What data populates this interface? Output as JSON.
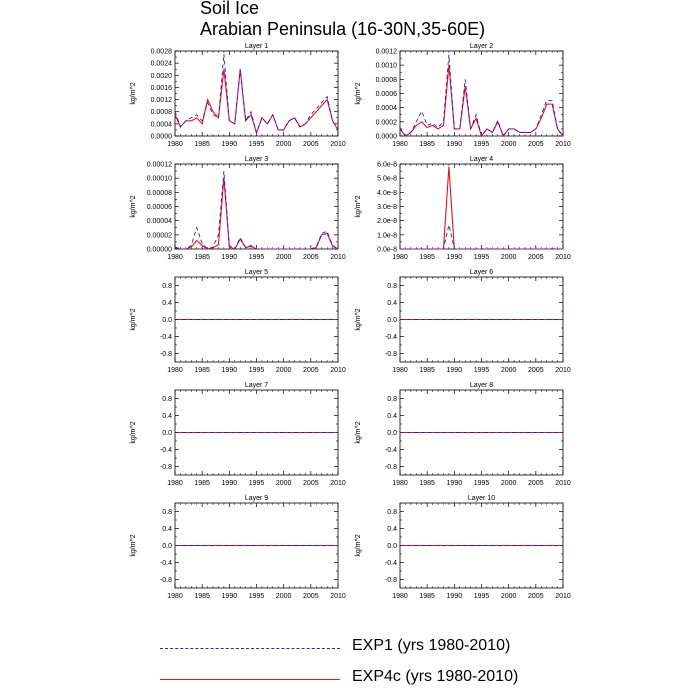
{
  "title": "Soil Ice",
  "subtitle": "Arabian Peninsula (16-30N,35-60E)",
  "colors": {
    "exp1": "#2222dd",
    "exp4c": "#ee1111",
    "axis": "#000000"
  },
  "legend": [
    {
      "label": "EXP1 (yrs 1980-2010)",
      "style": "dashed",
      "color": "#2222dd"
    },
    {
      "label": "EXP4c (yrs 1980-2010)",
      "style": "solid",
      "color": "#ee1111"
    }
  ],
  "chart_data": [
    {
      "type": "line",
      "title": "Layer 1",
      "ylabel": "kg/m^2",
      "xlabel": "",
      "xlim": [
        1980,
        2010
      ],
      "ylim": [
        0,
        0.0028
      ],
      "yticks": [
        0,
        0.0004,
        0.0008,
        0.0012,
        0.0016,
        0.002,
        0.0024,
        0.0028
      ],
      "ytick_labels": [
        "0.0000",
        "0.0004",
        "0.0008",
        "0.0012",
        "0.0016",
        "0.0020",
        "0.0024",
        "0.0028"
      ],
      "xticks": [
        1980,
        1985,
        1990,
        1995,
        2000,
        2005,
        2010
      ],
      "xtick_labels": [
        "1980",
        "1985",
        "1990",
        "1995",
        "2000",
        "2005",
        "2010"
      ],
      "x": [
        1980,
        1981,
        1982,
        1983,
        1984,
        1985,
        1986,
        1987,
        1988,
        1989,
        1990,
        1991,
        1992,
        1993,
        1994,
        1995,
        1996,
        1997,
        1998,
        1999,
        2000,
        2001,
        2002,
        2003,
        2004,
        2005,
        2006,
        2007,
        2008,
        2009,
        2010
      ],
      "series": [
        {
          "name": "EXP1 (yrs 1980-2010)",
          "style": "dashed",
          "values": [
            0.0008,
            0.0003,
            0.0005,
            0.0006,
            0.0007,
            0.0005,
            0.0011,
            0.0007,
            0.0006,
            0.0027,
            0.0005,
            0.0004,
            0.0022,
            0.0005,
            0.0008,
            0.0001,
            0.0006,
            0.0004,
            0.0007,
            0.0002,
            0.0002,
            0.0005,
            0.0006,
            0.0003,
            0.0004,
            0.0007,
            0.0009,
            0.0011,
            0.0013,
            0.0005,
            0.0002
          ]
        },
        {
          "name": "EXP4c (yrs 1980-2010)",
          "style": "solid",
          "values": [
            0.0007,
            0.0003,
            0.0005,
            0.0005,
            0.0006,
            0.0004,
            0.0012,
            0.0008,
            0.0006,
            0.0022,
            0.0005,
            0.0004,
            0.0022,
            0.0005,
            0.0007,
            0.0001,
            0.0006,
            0.0004,
            0.0007,
            0.0002,
            0.0002,
            0.0005,
            0.0006,
            0.0003,
            0.0004,
            0.0006,
            0.0008,
            0.001,
            0.0012,
            0.0005,
            0.0002
          ]
        }
      ]
    },
    {
      "type": "line",
      "title": "Layer 2",
      "ylabel": "kg/m^2",
      "xlabel": "",
      "xlim": [
        1980,
        2010
      ],
      "ylim": [
        0,
        0.0012
      ],
      "yticks": [
        0,
        0.0002,
        0.0004,
        0.0006,
        0.0008,
        0.001,
        0.0012
      ],
      "ytick_labels": [
        "0.0000",
        "0.0002",
        "0.0004",
        "0.0006",
        "0.0008",
        "0.0010",
        "0.0012"
      ],
      "xticks": [
        1980,
        1985,
        1990,
        1995,
        2000,
        2005,
        2010
      ],
      "xtick_labels": [
        "1980",
        "1985",
        "1990",
        "1995",
        "2000",
        "2005",
        "2010"
      ],
      "x": [
        1980,
        1981,
        1982,
        1983,
        1984,
        1985,
        1986,
        1987,
        1988,
        1989,
        1990,
        1991,
        1992,
        1993,
        1994,
        1995,
        1996,
        1997,
        1998,
        1999,
        2000,
        2001,
        2002,
        2003,
        2004,
        2005,
        2006,
        2007,
        2008,
        2009,
        2010
      ],
      "series": [
        {
          "name": "EXP1 (yrs 1980-2010)",
          "style": "dashed",
          "values": [
            0.00012,
            0.0,
            5e-05,
            0.0002,
            0.00035,
            0.00015,
            0.00018,
            0.00012,
            0.0002,
            0.00115,
            0.0001,
            0.0001,
            0.0008,
            0.0001,
            0.0003,
            0.0,
            0.0001,
            5e-05,
            0.00022,
            0.0,
            0.0001,
            0.0001,
            5e-05,
            5e-05,
            5e-05,
            0.0001,
            0.0003,
            0.0005,
            0.0005,
            0.0001,
            0.0
          ]
        },
        {
          "name": "EXP4c (yrs 1980-2010)",
          "style": "solid",
          "values": [
            0.0001,
            0.0,
            5e-05,
            0.00015,
            0.0002,
            0.00012,
            0.00015,
            0.0001,
            0.00015,
            0.001,
            0.0001,
            0.0001,
            0.0007,
            0.0001,
            0.00025,
            0.0,
            0.0001,
            5e-05,
            0.0002,
            0.0,
            0.0001,
            0.0001,
            5e-05,
            5e-05,
            5e-05,
            0.0001,
            0.00025,
            0.00045,
            0.00045,
            0.0001,
            0.0
          ]
        }
      ]
    },
    {
      "type": "line",
      "title": "Layer 3",
      "ylabel": "kg/m^2",
      "xlabel": "",
      "xlim": [
        1980,
        2010
      ],
      "ylim": [
        0,
        0.00012
      ],
      "yticks": [
        0,
        2e-05,
        4e-05,
        6e-05,
        8e-05,
        0.0001,
        0.00012
      ],
      "ytick_labels": [
        "0.00000",
        "0.00002",
        "0.00004",
        "0.00006",
        "0.00008",
        "0.00010",
        "0.00012"
      ],
      "xticks": [
        1980,
        1985,
        1990,
        1995,
        2000,
        2005,
        2010
      ],
      "xtick_labels": [
        "1980",
        "1985",
        "1990",
        "1995",
        "2000",
        "2005",
        "2010"
      ],
      "x": [
        1980,
        1981,
        1982,
        1983,
        1984,
        1985,
        1986,
        1987,
        1988,
        1989,
        1990,
        1991,
        1992,
        1993,
        1994,
        1995,
        1996,
        1997,
        1998,
        1999,
        2000,
        2001,
        2002,
        2003,
        2004,
        2005,
        2006,
        2007,
        2008,
        2009,
        2010
      ],
      "series": [
        {
          "name": "EXP1 (yrs 1980-2010)",
          "style": "dashed",
          "values": [
            3e-06,
            0,
            0,
            5e-06,
            3e-05,
            8e-06,
            0,
            3e-06,
            2e-05,
            0.00011,
            5e-06,
            0,
            1.6e-05,
            2e-06,
            5e-06,
            0,
            0,
            0,
            0,
            0,
            0,
            0,
            0,
            0,
            0,
            0,
            3e-06,
            2.2e-05,
            2.5e-05,
            5e-06,
            0
          ]
        },
        {
          "name": "EXP4c (yrs 1980-2010)",
          "style": "solid",
          "values": [
            2e-06,
            0,
            0,
            3e-06,
            1.2e-05,
            5e-06,
            0,
            2e-06,
            6e-06,
            0.0001,
            3e-06,
            0,
            1.4e-05,
            2e-06,
            4e-06,
            0,
            0,
            0,
            0,
            0,
            0,
            0,
            0,
            0,
            0,
            0,
            2e-06,
            2e-05,
            2.2e-05,
            4e-06,
            0
          ]
        }
      ]
    },
    {
      "type": "line",
      "title": "Layer 4",
      "ylabel": "kg/m^2",
      "xlabel": "",
      "xlim": [
        1980,
        2010
      ],
      "ylim": [
        0,
        6e-08
      ],
      "yticks": [
        0,
        1e-08,
        2e-08,
        3e-08,
        4e-08,
        5e-08,
        6e-08
      ],
      "ytick_labels": [
        "0.0e-8",
        "1.0e-8",
        "2.0e-8",
        "3.0e-8",
        "4.0e-8",
        "5.0e-8",
        "6.0e-8"
      ],
      "xticks": [
        1980,
        1985,
        1990,
        1995,
        2000,
        2005,
        2010
      ],
      "xtick_labels": [
        "1980",
        "1985",
        "1990",
        "1995",
        "2000",
        "2005",
        "2010"
      ],
      "x": [
        1980,
        1981,
        1982,
        1983,
        1984,
        1985,
        1986,
        1987,
        1988,
        1989,
        1990,
        1991,
        1992,
        1993,
        1994,
        1995,
        1996,
        1997,
        1998,
        1999,
        2000,
        2001,
        2002,
        2003,
        2004,
        2005,
        2006,
        2007,
        2008,
        2009,
        2010
      ],
      "series": [
        {
          "name": "EXP1 (yrs 1980-2010)",
          "style": "dashed",
          "values": [
            0,
            0,
            0,
            0,
            0,
            0,
            0,
            0,
            0,
            1.7e-08,
            0,
            0,
            0,
            0,
            0,
            0,
            0,
            0,
            0,
            0,
            0,
            0,
            0,
            0,
            0,
            0,
            0,
            0,
            2e-10,
            0,
            0
          ]
        },
        {
          "name": "EXP4c (yrs 1980-2010)",
          "style": "solid",
          "values": [
            0,
            0,
            0,
            0,
            0,
            0,
            0,
            0,
            0,
            5.8e-08,
            0,
            0,
            0,
            0,
            0,
            0,
            0,
            0,
            0,
            0,
            0,
            0,
            0,
            0,
            0,
            0,
            0,
            0,
            0,
            0,
            0
          ]
        }
      ]
    },
    {
      "type": "line",
      "title": "Layer 5",
      "ylabel": "kg/m^2",
      "xlabel": "",
      "xlim": [
        1980,
        2010
      ],
      "ylim": [
        -1,
        1
      ],
      "yticks": [
        -0.8,
        -0.4,
        0,
        0.4,
        0.8
      ],
      "ytick_labels": [
        "-0.8",
        "-0.4",
        "0.0",
        "0.4",
        "0.8"
      ],
      "xticks": [
        1980,
        1985,
        1990,
        1995,
        2000,
        2005,
        2010
      ],
      "xtick_labels": [
        "1980",
        "1985",
        "1990",
        "1995",
        "2000",
        "2005",
        "2010"
      ],
      "x": [
        1980,
        2010
      ],
      "series": [
        {
          "name": "EXP1 (yrs 1980-2010)",
          "style": "dashed",
          "values": [
            0,
            0
          ]
        },
        {
          "name": "EXP4c (yrs 1980-2010)",
          "style": "solid",
          "values": [
            0,
            0
          ]
        }
      ]
    },
    {
      "type": "line",
      "title": "Layer 6",
      "ylabel": "kg/m^2",
      "xlabel": "",
      "xlim": [
        1980,
        2010
      ],
      "ylim": [
        -1,
        1
      ],
      "yticks": [
        -0.8,
        -0.4,
        0,
        0.4,
        0.8
      ],
      "ytick_labels": [
        "-0.8",
        "-0.4",
        "0.0",
        "0.4",
        "0.8"
      ],
      "xticks": [
        1980,
        1985,
        1990,
        1995,
        2000,
        2005,
        2010
      ],
      "xtick_labels": [
        "1980",
        "1985",
        "1990",
        "1995",
        "2000",
        "2005",
        "2010"
      ],
      "x": [
        1980,
        2010
      ],
      "series": [
        {
          "name": "EXP1 (yrs 1980-2010)",
          "style": "dashed",
          "values": [
            0,
            0
          ]
        },
        {
          "name": "EXP4c (yrs 1980-2010)",
          "style": "solid",
          "values": [
            0,
            0
          ]
        }
      ]
    },
    {
      "type": "line",
      "title": "Layer 7",
      "ylabel": "kg/m^2",
      "xlabel": "",
      "xlim": [
        1980,
        2010
      ],
      "ylim": [
        -1,
        1
      ],
      "yticks": [
        -0.8,
        -0.4,
        0,
        0.4,
        0.8
      ],
      "ytick_labels": [
        "-0.8",
        "-0.4",
        "0.0",
        "0.4",
        "0.8"
      ],
      "xticks": [
        1980,
        1985,
        1990,
        1995,
        2000,
        2005,
        2010
      ],
      "xtick_labels": [
        "1980",
        "1985",
        "1990",
        "1995",
        "2000",
        "2005",
        "2010"
      ],
      "x": [
        1980,
        2010
      ],
      "series": [
        {
          "name": "EXP1 (yrs 1980-2010)",
          "style": "dashed",
          "values": [
            0,
            0
          ]
        },
        {
          "name": "EXP4c (yrs 1980-2010)",
          "style": "solid",
          "values": [
            0,
            0
          ]
        }
      ]
    },
    {
      "type": "line",
      "title": "Layer 8",
      "ylabel": "kg/m^2",
      "xlabel": "",
      "xlim": [
        1980,
        2010
      ],
      "ylim": [
        -1,
        1
      ],
      "yticks": [
        -0.8,
        -0.4,
        0,
        0.4,
        0.8
      ],
      "ytick_labels": [
        "-0.8",
        "-0.4",
        "0.0",
        "0.4",
        "0.8"
      ],
      "xticks": [
        1980,
        1985,
        1990,
        1995,
        2000,
        2005,
        2010
      ],
      "xtick_labels": [
        "1980",
        "1985",
        "1990",
        "1995",
        "2000",
        "2005",
        "2010"
      ],
      "x": [
        1980,
        2010
      ],
      "series": [
        {
          "name": "EXP1 (yrs 1980-2010)",
          "style": "dashed",
          "values": [
            0,
            0
          ]
        },
        {
          "name": "EXP4c (yrs 1980-2010)",
          "style": "solid",
          "values": [
            0,
            0
          ]
        }
      ]
    },
    {
      "type": "line",
      "title": "Layer 9",
      "ylabel": "kg/m^2",
      "xlabel": "",
      "xlim": [
        1980,
        2010
      ],
      "ylim": [
        -1,
        1
      ],
      "yticks": [
        -0.8,
        -0.4,
        0,
        0.4,
        0.8
      ],
      "ytick_labels": [
        "-0.8",
        "-0.4",
        "0.0",
        "0.4",
        "0.8"
      ],
      "xticks": [
        1980,
        1985,
        1990,
        1995,
        2000,
        2005,
        2010
      ],
      "xtick_labels": [
        "1980",
        "1985",
        "1990",
        "1995",
        "2000",
        "2005",
        "2010"
      ],
      "x": [
        1980,
        2010
      ],
      "series": [
        {
          "name": "EXP1 (yrs 1980-2010)",
          "style": "dashed",
          "values": [
            0,
            0
          ]
        },
        {
          "name": "EXP4c (yrs 1980-2010)",
          "style": "solid",
          "values": [
            0,
            0
          ]
        }
      ]
    },
    {
      "type": "line",
      "title": "Layer 10",
      "ylabel": "kg/m^2",
      "xlabel": "",
      "xlim": [
        1980,
        2010
      ],
      "ylim": [
        -1,
        1
      ],
      "yticks": [
        -0.8,
        -0.4,
        0,
        0.4,
        0.8
      ],
      "ytick_labels": [
        "-0.8",
        "-0.4",
        "0.0",
        "0.4",
        "0.8"
      ],
      "xticks": [
        1980,
        1985,
        1990,
        1995,
        2000,
        2005,
        2010
      ],
      "xtick_labels": [
        "1980",
        "1985",
        "1990",
        "1995",
        "2000",
        "2005",
        "2010"
      ],
      "x": [
        1980,
        2010
      ],
      "series": [
        {
          "name": "EXP1 (yrs 1980-2010)",
          "style": "dashed",
          "values": [
            0,
            0
          ]
        },
        {
          "name": "EXP4c (yrs 1980-2010)",
          "style": "solid",
          "values": [
            0,
            0
          ]
        }
      ]
    }
  ]
}
